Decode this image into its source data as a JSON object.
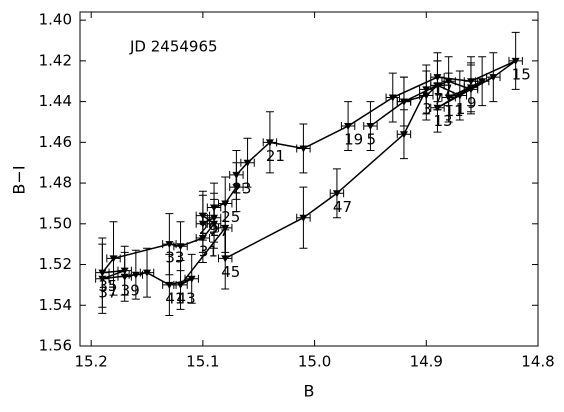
{
  "chart_data": {
    "type": "errorbar_line",
    "annotation": "JD 2454965",
    "xlabel": "B",
    "ylabel": "B−I",
    "xlim": [
      15.21,
      14.8
    ],
    "ylim": [
      1.396,
      1.56
    ],
    "xticks": [
      15.2,
      15.1,
      {
        "value": 15.0,
        "label": "15.0"
      },
      14.9,
      14.8
    ],
    "yticks": [
      {
        "value": 1.4,
        "label": "1.40"
      },
      1.42,
      1.44,
      1.46,
      1.48,
      {
        "value": 1.5,
        "label": "1.50"
      },
      1.52,
      1.54,
      1.56
    ],
    "color": "#000000",
    "x": [
      14.87,
      14.89,
      14.9,
      14.92,
      14.95,
      14.92,
      14.89,
      14.88,
      14.86,
      14.85,
      14.88,
      14.86,
      14.89,
      14.84,
      14.82,
      14.86,
      14.89,
      14.93,
      14.97,
      15.01,
      15.04,
      15.06,
      15.07,
      15.07,
      15.08,
      15.09,
      15.09,
      15.1,
      15.1,
      15.09,
      15.1,
      15.12,
      15.13,
      15.18,
      15.19,
      15.17,
      15.19,
      15.16,
      15.17,
      15.15,
      15.13,
      15.11,
      15.12,
      15.08,
      15.08,
      15.01,
      14.98,
      14.92,
      14.9
    ],
    "y": [
      1.437,
      1.432,
      1.437,
      1.44,
      1.452,
      1.44,
      1.432,
      1.43,
      1.434,
      1.43,
      1.438,
      1.433,
      1.443,
      1.428,
      1.42,
      1.43,
      1.428,
      1.438,
      1.452,
      1.463,
      1.46,
      1.47,
      1.476,
      1.482,
      1.49,
      1.492,
      1.497,
      1.5,
      1.496,
      1.5,
      1.507,
      1.511,
      1.51,
      1.517,
      1.524,
      1.523,
      1.527,
      1.525,
      1.526,
      1.524,
      1.53,
      1.527,
      1.53,
      1.502,
      1.517,
      1.497,
      1.485,
      1.456,
      1.434
    ],
    "xerr": [
      0.006,
      0.006,
      0.006,
      0.006,
      0.006,
      0.006,
      0.006,
      0.006,
      0.006,
      0.006,
      0.006,
      0.006,
      0.006,
      0.006,
      0.006,
      0.006,
      0.006,
      0.006,
      0.006,
      0.006,
      0.006,
      0.006,
      0.006,
      0.006,
      0.006,
      0.006,
      0.006,
      0.006,
      0.006,
      0.006,
      0.006,
      0.006,
      0.006,
      0.006,
      0.006,
      0.006,
      0.006,
      0.006,
      0.006,
      0.006,
      0.006,
      0.006,
      0.006,
      0.006,
      0.006,
      0.006,
      0.006,
      0.006,
      0.006
    ],
    "yerr": [
      0.012,
      0.012,
      0.012,
      0.012,
      0.012,
      0.012,
      0.012,
      0.012,
      0.012,
      0.012,
      0.012,
      0.012,
      0.012,
      0.012,
      0.014,
      0.012,
      0.012,
      0.012,
      0.012,
      0.012,
      0.015,
      0.012,
      0.012,
      0.012,
      0.013,
      0.012,
      0.012,
      0.014,
      0.012,
      0.012,
      0.012,
      0.012,
      0.015,
      0.018,
      0.017,
      0.012,
      0.017,
      0.012,
      0.012,
      0.012,
      0.015,
      0.012,
      0.012,
      0.012,
      0.015,
      0.015,
      0.012,
      0.012,
      0.012
    ],
    "point_labels": [
      "1",
      null,
      "3",
      null,
      "5",
      null,
      "7",
      null,
      "9",
      null,
      "11",
      null,
      "13",
      null,
      "15",
      null,
      "17",
      null,
      "19",
      null,
      "21",
      null,
      "23",
      null,
      "25",
      null,
      "27",
      null,
      "29",
      null,
      "31",
      null,
      "33",
      null,
      "35",
      null,
      "37",
      null,
      "39",
      null,
      "41",
      null,
      "43",
      null,
      "45",
      null,
      "47",
      null,
      null
    ]
  }
}
